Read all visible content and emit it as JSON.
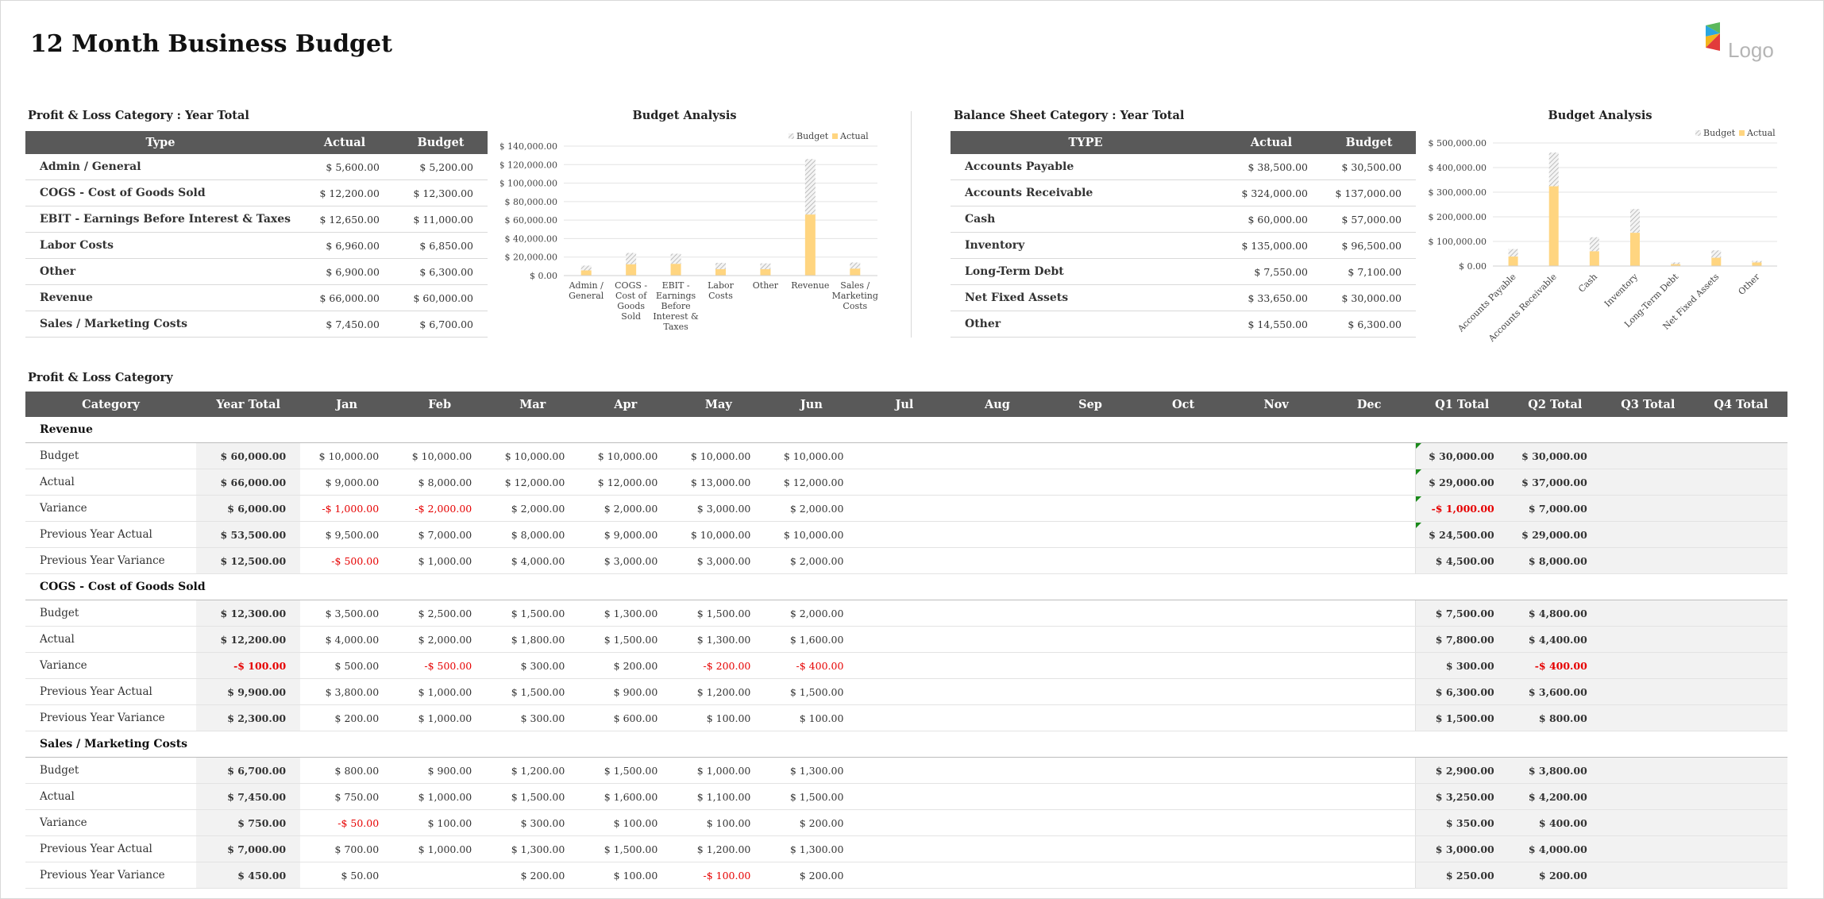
{
  "title": "12 Month Business Budget",
  "logo_text": "Logo",
  "pl_summary": {
    "label": "Profit & Loss Category : Year Total",
    "headers": [
      "Type",
      "Actual",
      "Budget"
    ],
    "rows": [
      {
        "type": "Admin / General",
        "actual": "$ 5,600.00",
        "budget": "$ 5,200.00"
      },
      {
        "type": "COGS - Cost of Goods Sold",
        "actual": "$ 12,200.00",
        "budget": "$ 12,300.00"
      },
      {
        "type": "EBIT - Earnings Before Interest & Taxes",
        "actual": "$ 12,650.00",
        "budget": "$ 11,000.00"
      },
      {
        "type": "Labor Costs",
        "actual": "$ 6,960.00",
        "budget": "$ 6,850.00"
      },
      {
        "type": "Other",
        "actual": "$ 6,900.00",
        "budget": "$ 6,300.00"
      },
      {
        "type": "Revenue",
        "actual": "$ 66,000.00",
        "budget": "$ 60,000.00"
      },
      {
        "type": "Sales / Marketing Costs",
        "actual": "$ 7,450.00",
        "budget": "$ 6,700.00"
      }
    ]
  },
  "bs_summary": {
    "label": "Balance Sheet Category : Year Total",
    "headers": [
      "TYPE",
      "Actual",
      "Budget"
    ],
    "rows": [
      {
        "type": "Accounts Payable",
        "actual": "$ 38,500.00",
        "budget": "$ 30,500.00"
      },
      {
        "type": "Accounts Receivable",
        "actual": "$ 324,000.00",
        "budget": "$ 137,000.00"
      },
      {
        "type": "Cash",
        "actual": "$ 60,000.00",
        "budget": "$ 57,000.00"
      },
      {
        "type": "Inventory",
        "actual": "$ 135,000.00",
        "budget": "$ 96,500.00"
      },
      {
        "type": "Long-Term Debt",
        "actual": "$ 7,550.00",
        "budget": "$ 7,100.00"
      },
      {
        "type": "Net Fixed Assets",
        "actual": "$ 33,650.00",
        "budget": "$ 30,000.00"
      },
      {
        "type": "Other",
        "actual": "$ 14,550.00",
        "budget": "$ 6,300.00"
      }
    ]
  },
  "chart_data": [
    {
      "type": "bar",
      "stacked": true,
      "title": "Budget Analysis",
      "categories": [
        "Admin / General",
        "COGS - Cost of Goods Sold",
        "EBIT - Earnings Before Interest & Taxes",
        "Labor Costs",
        "Other",
        "Revenue",
        "Sales / Marketing Costs"
      ],
      "series": [
        {
          "name": "Budget",
          "values": [
            5200,
            12300,
            11000,
            6850,
            6300,
            60000,
            6700
          ],
          "color": "#e8e8e8"
        },
        {
          "name": "Actual",
          "values": [
            5600,
            12200,
            12650,
            6960,
            6900,
            66000,
            7450
          ],
          "color": "#ffd580"
        }
      ],
      "ylim": [
        0,
        140000
      ],
      "yticks": [
        "$ 0.00",
        "$ 20,000.00",
        "$ 40,000.00",
        "$ 60,000.00",
        "$ 80,000.00",
        "$ 100,000.00",
        "$ 120,000.00",
        "$ 140,000.00"
      ],
      "legend": "top-right",
      "grid": true
    },
    {
      "type": "bar",
      "stacked": true,
      "title": "Budget Analysis",
      "categories": [
        "Accounts Payable",
        "Accounts Receivable",
        "Cash",
        "Inventory",
        "Long-Term Debt",
        "Net Fixed Assets",
        "Other"
      ],
      "series": [
        {
          "name": "Budget",
          "values": [
            30500,
            137000,
            57000,
            96500,
            7100,
            30000,
            6300
          ],
          "color": "#e8e8e8"
        },
        {
          "name": "Actual",
          "values": [
            38500,
            324000,
            60000,
            135000,
            7550,
            33650,
            14550
          ],
          "color": "#ffd580"
        }
      ],
      "ylim": [
        0,
        500000
      ],
      "yticks": [
        "$ 0.00",
        "$ 100,000.00",
        "$ 200,000.00",
        "$ 300,000.00",
        "$ 400,000.00",
        "$ 500,000.00"
      ],
      "legend": "top-right",
      "grid": true
    }
  ],
  "pl_category": {
    "label": "Profit  & Loss Category",
    "headers": [
      "Category",
      "Year Total",
      "Jan",
      "Feb",
      "Mar",
      "Apr",
      "May",
      "Jun",
      "Jul",
      "Aug",
      "Sep",
      "Oct",
      "Nov",
      "Dec",
      "Q1 Total",
      "Q2 Total",
      "Q3 Total",
      "Q4 Total"
    ],
    "groups": [
      {
        "name": "Revenue",
        "rows": [
          {
            "label": "Budget",
            "year_total": "$ 60,000.00",
            "months": [
              "$ 10,000.00",
              "$ 10,000.00",
              "$ 10,000.00",
              "$ 10,000.00",
              "$ 10,000.00",
              "$ 10,000.00",
              "",
              "",
              "",
              "",
              "",
              ""
            ],
            "quarters": [
              "$ 30,000.00",
              "$ 30,000.00",
              "",
              ""
            ]
          },
          {
            "label": "Actual",
            "year_total": "$ 66,000.00",
            "months": [
              "$ 9,000.00",
              "$ 8,000.00",
              "$ 12,000.00",
              "$ 12,000.00",
              "$ 13,000.00",
              "$ 12,000.00",
              "",
              "",
              "",
              "",
              "",
              ""
            ],
            "quarters": [
              "$ 29,000.00",
              "$ 37,000.00",
              "",
              ""
            ]
          },
          {
            "label": "Variance",
            "year_total": "$ 6,000.00",
            "months": [
              "-$ 1,000.00",
              "-$ 2,000.00",
              "$ 2,000.00",
              "$ 2,000.00",
              "$ 3,000.00",
              "$ 2,000.00",
              "",
              "",
              "",
              "",
              "",
              ""
            ],
            "quarters": [
              "-$ 1,000.00",
              "$ 7,000.00",
              "",
              ""
            ]
          },
          {
            "label": "Previous Year Actual",
            "year_total": "$ 53,500.00",
            "months": [
              "$ 9,500.00",
              "$ 7,000.00",
              "$ 8,000.00",
              "$ 9,000.00",
              "$ 10,000.00",
              "$ 10,000.00",
              "",
              "",
              "",
              "",
              "",
              ""
            ],
            "quarters": [
              "$ 24,500.00",
              "$ 29,000.00",
              "",
              ""
            ]
          },
          {
            "label": "Previous Year Variance",
            "year_total": "$ 12,500.00",
            "months": [
              "-$ 500.00",
              "$ 1,000.00",
              "$ 4,000.00",
              "$ 3,000.00",
              "$ 3,000.00",
              "$ 2,000.00",
              "",
              "",
              "",
              "",
              "",
              ""
            ],
            "quarters": [
              "$ 4,500.00",
              "$ 8,000.00",
              "",
              ""
            ]
          }
        ]
      },
      {
        "name": "COGS - Cost of Goods Sold",
        "rows": [
          {
            "label": "Budget",
            "year_total": "$ 12,300.00",
            "months": [
              "$ 3,500.00",
              "$ 2,500.00",
              "$ 1,500.00",
              "$ 1,300.00",
              "$ 1,500.00",
              "$ 2,000.00",
              "",
              "",
              "",
              "",
              "",
              ""
            ],
            "quarters": [
              "$ 7,500.00",
              "$ 4,800.00",
              "",
              ""
            ]
          },
          {
            "label": "Actual",
            "year_total": "$ 12,200.00",
            "months": [
              "$ 4,000.00",
              "$ 2,000.00",
              "$ 1,800.00",
              "$ 1,500.00",
              "$ 1,300.00",
              "$ 1,600.00",
              "",
              "",
              "",
              "",
              "",
              ""
            ],
            "quarters": [
              "$ 7,800.00",
              "$ 4,400.00",
              "",
              ""
            ]
          },
          {
            "label": "Variance",
            "year_total": "-$ 100.00",
            "months": [
              "$ 500.00",
              "-$ 500.00",
              "$ 300.00",
              "$ 200.00",
              "-$ 200.00",
              "-$ 400.00",
              "",
              "",
              "",
              "",
              "",
              ""
            ],
            "quarters": [
              "$ 300.00",
              "-$ 400.00",
              "",
              ""
            ]
          },
          {
            "label": "Previous Year Actual",
            "year_total": "$ 9,900.00",
            "months": [
              "$ 3,800.00",
              "$ 1,000.00",
              "$ 1,500.00",
              "$ 900.00",
              "$ 1,200.00",
              "$ 1,500.00",
              "",
              "",
              "",
              "",
              "",
              ""
            ],
            "quarters": [
              "$ 6,300.00",
              "$ 3,600.00",
              "",
              ""
            ]
          },
          {
            "label": "Previous Year Variance",
            "year_total": "$ 2,300.00",
            "months": [
              "$ 200.00",
              "$ 1,000.00",
              "$ 300.00",
              "$ 600.00",
              "$ 100.00",
              "$ 100.00",
              "",
              "",
              "",
              "",
              "",
              ""
            ],
            "quarters": [
              "$ 1,500.00",
              "$ 800.00",
              "",
              ""
            ]
          }
        ]
      },
      {
        "name": "Sales / Marketing Costs",
        "rows": [
          {
            "label": "Budget",
            "year_total": "$ 6,700.00",
            "months": [
              "$ 800.00",
              "$ 900.00",
              "$ 1,200.00",
              "$ 1,500.00",
              "$ 1,000.00",
              "$ 1,300.00",
              "",
              "",
              "",
              "",
              "",
              ""
            ],
            "quarters": [
              "$ 2,900.00",
              "$ 3,800.00",
              "",
              ""
            ]
          },
          {
            "label": "Actual",
            "year_total": "$ 7,450.00",
            "months": [
              "$ 750.00",
              "$ 1,000.00",
              "$ 1,500.00",
              "$ 1,600.00",
              "$ 1,100.00",
              "$ 1,500.00",
              "",
              "",
              "",
              "",
              "",
              ""
            ],
            "quarters": [
              "$ 3,250.00",
              "$ 4,200.00",
              "",
              ""
            ]
          },
          {
            "label": "Variance",
            "year_total": "$ 750.00",
            "months": [
              "-$ 50.00",
              "$ 100.00",
              "$ 300.00",
              "$ 100.00",
              "$ 100.00",
              "$ 200.00",
              "",
              "",
              "",
              "",
              "",
              ""
            ],
            "quarters": [
              "$ 350.00",
              "$ 400.00",
              "",
              ""
            ]
          },
          {
            "label": "Previous Year Actual",
            "year_total": "$ 7,000.00",
            "months": [
              "$ 700.00",
              "$ 1,000.00",
              "$ 1,300.00",
              "$ 1,500.00",
              "$ 1,200.00",
              "$ 1,300.00",
              "",
              "",
              "",
              "",
              "",
              ""
            ],
            "quarters": [
              "$ 3,000.00",
              "$ 4,000.00",
              "",
              ""
            ]
          },
          {
            "label": "Previous Year Variance",
            "year_total": "$ 450.00",
            "months": [
              "$ 50.00",
              "",
              "$ 200.00",
              "$ 100.00",
              "-$ 100.00",
              "$ 200.00",
              "",
              "",
              "",
              "",
              "",
              ""
            ],
            "quarters": [
              "$ 250.00",
              "$ 200.00",
              "",
              ""
            ]
          }
        ]
      }
    ]
  },
  "colors": {
    "header_bg": "#595959",
    "negative": "#e60000",
    "actual_bar": "#ffd580",
    "budget_bar": "#e8e8e8"
  }
}
